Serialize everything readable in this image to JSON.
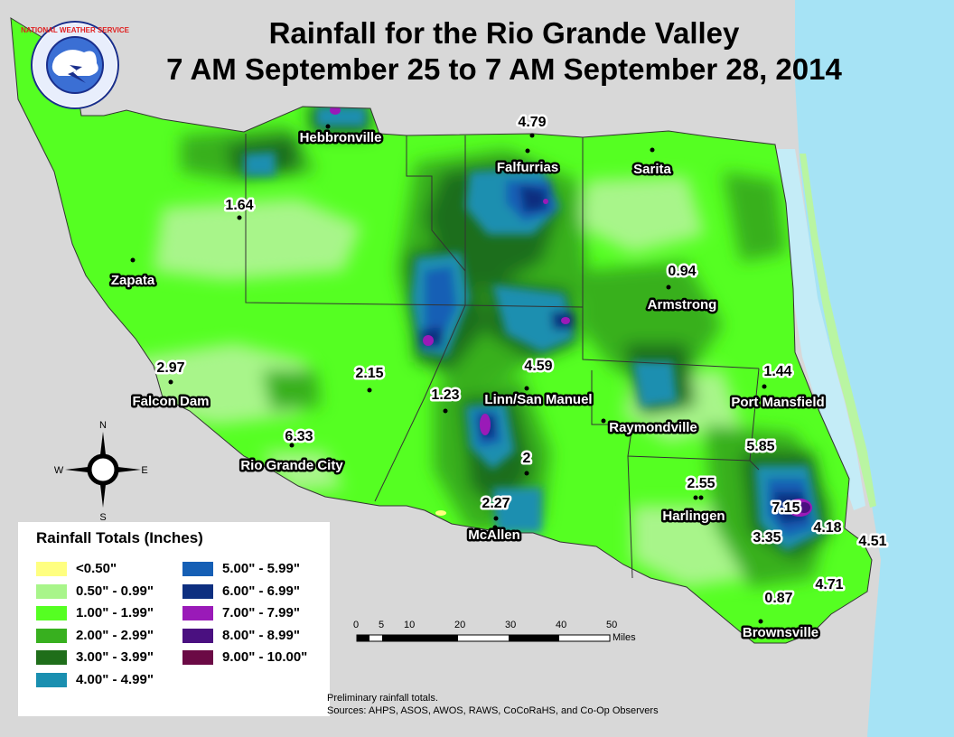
{
  "title": {
    "line1": "Rainfall for the Rio Grande Valley",
    "line2": "7 AM September 25 to 7 AM September 28, 2014"
  },
  "logo": {
    "text": "NATIONAL WEATHER SERVICE",
    "colors": [
      "#1a2f8c",
      "#3b6fd4",
      "#ffffff",
      "#e02020"
    ]
  },
  "colors": {
    "background": "#d8d8d8",
    "water": "#a6e3f5",
    "county_line": "#333333"
  },
  "places": [
    {
      "name": "Hebbronville"
    },
    {
      "name": "Falfurrias"
    },
    {
      "name": "Sarita"
    },
    {
      "name": "Zapata"
    },
    {
      "name": "Armstrong"
    },
    {
      "name": "Falcon Dam"
    },
    {
      "name": "Linn/San Manuel"
    },
    {
      "name": "Port Mansfield"
    },
    {
      "name": "Raymondville"
    },
    {
      "name": "Rio Grande City"
    },
    {
      "name": "Harlingen"
    },
    {
      "name": "McAllen"
    },
    {
      "name": "Brownsville"
    }
  ],
  "rain_values": [
    {
      "value": "4.79"
    },
    {
      "value": "1.64"
    },
    {
      "value": "0.94"
    },
    {
      "value": "2.97"
    },
    {
      "value": "2.15"
    },
    {
      "value": "1.23"
    },
    {
      "value": "4.59"
    },
    {
      "value": "1.44"
    },
    {
      "value": "6.33"
    },
    {
      "value": "5.85"
    },
    {
      "value": "2"
    },
    {
      "value": "2.55"
    },
    {
      "value": "7.15"
    },
    {
      "value": "2.27"
    },
    {
      "value": "4.18"
    },
    {
      "value": "3.35"
    },
    {
      "value": "4.51"
    },
    {
      "value": "4.71"
    },
    {
      "value": "0.87"
    }
  ],
  "compass": {
    "n": "N",
    "s": "S",
    "e": "E",
    "w": "W"
  },
  "legend": {
    "title": "Rainfall Totals (Inches)",
    "items": [
      {
        "label": "<0.50\"",
        "color": "#ffff80"
      },
      {
        "label": "0.50\" - 0.99\"",
        "color": "#a8f58a"
      },
      {
        "label": "1.00\" - 1.99\"",
        "color": "#55ff22"
      },
      {
        "label": "2.00\" - 2.99\"",
        "color": "#38b01f"
      },
      {
        "label": "3.00\" - 3.99\"",
        "color": "#1f6e1a"
      },
      {
        "label": "4.00\" - 4.99\"",
        "color": "#1a8fb0"
      },
      {
        "label": "5.00\" - 5.99\"",
        "color": "#155fb5"
      },
      {
        "label": "6.00\" - 6.99\"",
        "color": "#0d2f80"
      },
      {
        "label": "7.00\" - 7.99\"",
        "color": "#9a1ab8"
      },
      {
        "label": "8.00\" - 8.99\"",
        "color": "#4a1080"
      },
      {
        "label": "9.00\" - 10.00\"",
        "color": "#6b0a45"
      }
    ]
  },
  "scale": {
    "ticks": [
      "0",
      "5",
      "10",
      "20",
      "30",
      "40",
      "50"
    ],
    "unit": "Miles"
  },
  "notes": {
    "line1": "Preliminary rainfall totals.",
    "line2": "Sources: AHPS, ASOS, AWOS, RAWS, CoCoRaHS, and Co-Op Observers"
  }
}
